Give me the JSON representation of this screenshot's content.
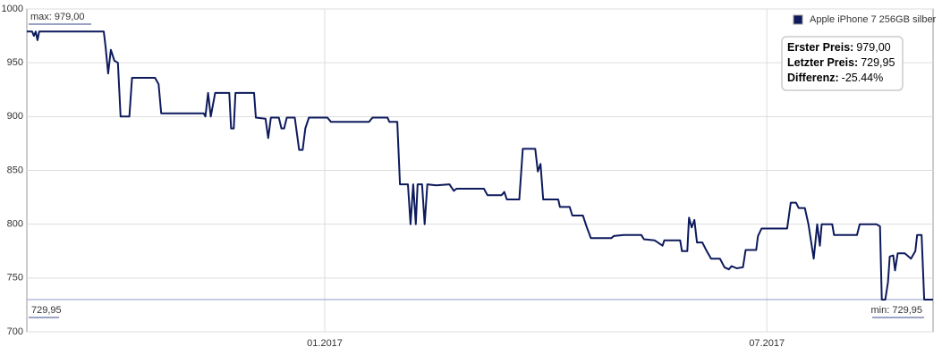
{
  "chart_data": {
    "type": "line",
    "x": [
      2016.663,
      2016.669,
      2016.671,
      2016.673,
      2016.675,
      2016.677,
      2016.75,
      2016.752,
      2016.755,
      2016.758,
      2016.762,
      2016.766,
      2016.769,
      2016.779,
      2016.782,
      2016.808,
      2016.812,
      2016.815,
      2016.863,
      2016.865,
      2016.868,
      2016.871,
      2016.876,
      2016.892,
      2016.894,
      2016.897,
      2016.899,
      2016.92,
      2016.922,
      2016.933,
      2016.936,
      2016.939,
      2016.948,
      2016.951,
      2016.954,
      2016.957,
      2016.966,
      2016.971,
      2016.975,
      2016.978,
      2016.982,
      2017.003,
      2017.007,
      2017.05,
      2017.054,
      2017.071,
      2017.073,
      2017.082,
      2017.085,
      2017.094,
      2017.097,
      2017.1,
      2017.103,
      2017.105,
      2017.11,
      2017.113,
      2017.116,
      2017.126,
      2017.141,
      2017.146,
      2017.149,
      2017.18,
      2017.184,
      2017.2,
      2017.203,
      2017.206,
      2017.22,
      2017.224,
      2017.238,
      2017.241,
      2017.244,
      2017.247,
      2017.264,
      2017.266,
      2017.277,
      2017.28,
      2017.292,
      2017.296,
      2017.301,
      2017.324,
      2017.327,
      2017.338,
      2017.358,
      2017.361,
      2017.373,
      2017.382,
      2017.384,
      2017.402,
      2017.404,
      2017.41,
      2017.412,
      2017.415,
      2017.418,
      2017.421,
      2017.427,
      2017.432,
      2017.437,
      2017.447,
      2017.452,
      2017.457,
      2017.46,
      2017.466,
      2017.473,
      2017.476,
      2017.488,
      2017.49,
      2017.494,
      2017.523,
      2017.527,
      2017.533,
      2017.536,
      2017.543,
      2017.547,
      2017.553,
      2017.557,
      2017.56,
      2017.562,
      2017.574,
      2017.576,
      2017.602,
      2017.605,
      2017.624,
      2017.628,
      2017.63,
      2017.634,
      2017.637,
      2017.639,
      2017.643,
      2017.645,
      2017.648,
      2017.656,
      2017.663,
      2017.668,
      2017.67,
      2017.675,
      2017.678,
      2017.688
    ],
    "series": [
      {
        "name": "Apple iPhone 7 256GB silber",
        "color": "#0d1a5c",
        "values": [
          979,
          979,
          975,
          979,
          971,
          979,
          979,
          965,
          940,
          962,
          952,
          950,
          900,
          900,
          936,
          936,
          930,
          903,
          903,
          900,
          922,
          900,
          922,
          922,
          889,
          889,
          922,
          922,
          899,
          898,
          880,
          899,
          899,
          889,
          889,
          899,
          899,
          869,
          869,
          889,
          899,
          899,
          895,
          895,
          899,
          899,
          895,
          895,
          837,
          837,
          800,
          837,
          800,
          837,
          837,
          800,
          837,
          836,
          837,
          831,
          833,
          833,
          827,
          827,
          830,
          823,
          823,
          870,
          870,
          849,
          856,
          823,
          823,
          816,
          816,
          808,
          808,
          798,
          787,
          787,
          789,
          790,
          790,
          786,
          785,
          780,
          785,
          785,
          775,
          775,
          806,
          797,
          804,
          783,
          783,
          775,
          768,
          768,
          760,
          758,
          761,
          759,
          760,
          776,
          776,
          789,
          796,
          796,
          820,
          820,
          815,
          815,
          800,
          768,
          800,
          780,
          800,
          800,
          790,
          790,
          800,
          800,
          798,
          729.95,
          729.95,
          746,
          770,
          771,
          757,
          773,
          773,
          768,
          775,
          790,
          790,
          729.95,
          729.95
        ]
      }
    ],
    "xlim": [
      2016.663,
      2017.688
    ],
    "xticks": [
      {
        "value": 2017.0,
        "label": "01.2017"
      },
      {
        "value": 2017.5,
        "label": "07.2017"
      }
    ],
    "ylim": [
      700,
      1000
    ],
    "yticks": [
      700,
      750,
      800,
      850,
      900,
      950,
      1000
    ],
    "grid": true,
    "legend": "top-right",
    "min_line": 729.95,
    "annotations": {
      "max_label": "max: 979,00",
      "start_label": "729,95",
      "min_label": "min: 729,95"
    },
    "info": [
      {
        "label": "Erster Preis:",
        "value": "979,00"
      },
      {
        "label": "Letzter Preis:",
        "value": "729,95"
      },
      {
        "label": "Differenz:",
        "value": "-25.44%"
      }
    ]
  }
}
